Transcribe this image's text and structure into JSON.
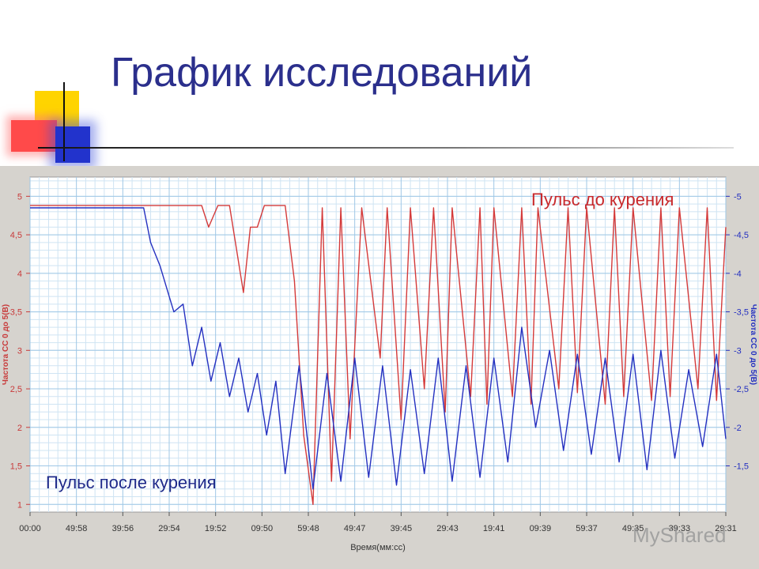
{
  "slide": {
    "title": "График исследований",
    "watermark": "MyShared"
  },
  "chart_data": {
    "type": "line",
    "x_tick_labels": [
      "00:00",
      "49:58",
      "39:56",
      "29:54",
      "19:52",
      "09:50",
      "59:48",
      "49:47",
      "39:45",
      "29:43",
      "19:41",
      "09:39",
      "59:37",
      "49:35",
      "39:33",
      "29:31"
    ],
    "xlabel": "Время(мм:сс)",
    "left_axis": {
      "label": "Частота СС 0 до 5(В)",
      "ticks": [
        "5",
        "4,5",
        "4",
        "3,5",
        "3",
        "2,5",
        "2",
        "1,5",
        "1"
      ],
      "range": [
        0.9,
        5.25
      ]
    },
    "right_axis": {
      "label": "Частота СС 0 до 5(В)",
      "ticks": [
        "-5",
        "-4,5",
        "-4",
        "-3,5",
        "-3",
        "-2,5",
        "-2",
        "-1,5"
      ],
      "range": [
        0.9,
        5.25
      ]
    },
    "grid": true,
    "series": [
      {
        "name": "Пульс до курения",
        "color": "#d43a3a",
        "axis": "left",
        "x": [
          0.0,
          1.0,
          2.0,
          3.0,
          3.4,
          3.7,
          3.85,
          4.05,
          4.3,
          4.6,
          4.75,
          4.9,
          5.05,
          5.2,
          5.5,
          5.7,
          5.9,
          6.1,
          6.3,
          6.5,
          6.7,
          6.9,
          7.15,
          7.55,
          7.7,
          8.0,
          8.2,
          8.5,
          8.7,
          8.95,
          9.1,
          9.5,
          9.7,
          9.85,
          10.0,
          10.4,
          10.6,
          10.8,
          10.95,
          11.4,
          11.6,
          11.8,
          12.0,
          12.4,
          12.6,
          12.8,
          13.0,
          13.4,
          13.6,
          13.8,
          14.0,
          14.4,
          14.6,
          14.8,
          15.0
        ],
        "y": [
          4.88,
          4.88,
          4.88,
          4.88,
          4.88,
          4.88,
          4.6,
          4.88,
          4.88,
          3.75,
          4.6,
          4.6,
          4.88,
          4.88,
          4.88,
          3.9,
          1.9,
          1.0,
          4.85,
          1.3,
          4.85,
          1.85,
          4.85,
          2.9,
          4.85,
          2.1,
          4.85,
          2.5,
          4.85,
          2.2,
          4.85,
          2.4,
          4.85,
          2.3,
          4.85,
          2.4,
          4.85,
          2.3,
          4.85,
          2.5,
          4.85,
          2.45,
          4.85,
          2.3,
          4.85,
          2.4,
          4.85,
          2.35,
          4.85,
          2.4,
          4.85,
          2.5,
          4.85,
          2.35,
          4.6
        ]
      },
      {
        "name": "Пульс после курения",
        "color": "#2430c0",
        "axis": "right",
        "x": [
          0.0,
          1.0,
          2.0,
          2.45,
          2.6,
          2.8,
          3.0,
          3.1,
          3.3,
          3.5,
          3.7,
          3.9,
          4.1,
          4.3,
          4.5,
          4.7,
          4.9,
          5.1,
          5.3,
          5.5,
          5.8,
          6.1,
          6.4,
          6.7,
          7.0,
          7.3,
          7.6,
          7.9,
          8.2,
          8.5,
          8.8,
          9.1,
          9.4,
          9.7,
          10.0,
          10.3,
          10.6,
          10.9,
          11.2,
          11.5,
          11.8,
          12.1,
          12.4,
          12.7,
          13.0,
          13.3,
          13.6,
          13.9,
          14.2,
          14.5,
          14.8,
          15.0
        ],
        "y": [
          4.85,
          4.85,
          4.85,
          4.85,
          4.4,
          4.1,
          3.7,
          3.5,
          3.6,
          2.8,
          3.3,
          2.6,
          3.1,
          2.4,
          2.9,
          2.2,
          2.7,
          1.9,
          2.6,
          1.4,
          2.8,
          1.2,
          2.7,
          1.3,
          2.9,
          1.35,
          2.8,
          1.25,
          2.75,
          1.4,
          2.9,
          1.3,
          2.8,
          1.35,
          2.9,
          1.55,
          3.3,
          2.0,
          3.0,
          1.7,
          2.95,
          1.65,
          2.9,
          1.55,
          2.95,
          1.45,
          3.0,
          1.6,
          2.75,
          1.75,
          2.95,
          1.85
        ]
      }
    ]
  },
  "labels": {
    "before": "Пульс до курения",
    "after": "Пульс после курения"
  }
}
